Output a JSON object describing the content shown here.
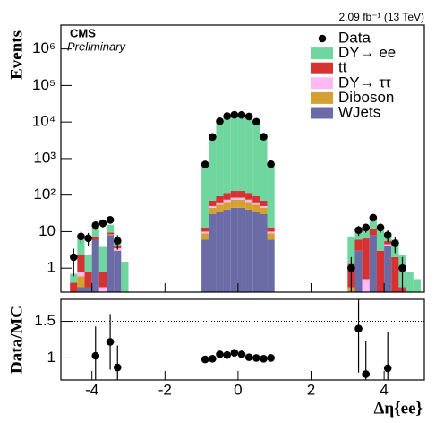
{
  "chart_data": [
    {
      "type": "histogram",
      "ylabel": "Events",
      "experiment": "CMS",
      "status": "Preliminary",
      "lumi": "2.09 fb⁻¹ (13 TeV)",
      "log_y": true,
      "legend": "upper right",
      "bins": [
        -4.6,
        -4.4,
        -4.2,
        -4.0,
        -3.8,
        -3.6,
        -3.4,
        -3.2,
        -3.0,
        -1.0,
        -0.8,
        -0.6,
        -0.4,
        -0.2,
        0,
        0.2,
        0.4,
        0.6,
        0.8,
        1.0,
        3.0,
        3.2,
        3.4,
        3.6,
        3.8,
        4.0,
        4.2,
        4.4,
        4.6,
        4.8,
        5.0
      ],
      "xlim": [
        -4.85,
        5.1
      ],
      "xticks": [
        -4,
        -2,
        0,
        2,
        4
      ],
      "ylim": [
        0.22,
        4500000
      ],
      "yticks": [
        1,
        10,
        {
          "value": 100,
          "label": "10²"
        },
        {
          "value": 1000,
          "label": "10³"
        },
        {
          "value": 10000,
          "label": "10⁴"
        },
        {
          "value": 100000,
          "label": "10⁵"
        },
        {
          "value": 1000000,
          "label": "10⁶"
        }
      ],
      "data": {
        "name": "Data",
        "color": "#000000",
        "values": [
          2,
          7.4,
          6.6,
          15,
          17,
          21,
          5.6,
          null,
          null,
          690,
          3900,
          10500,
          14500,
          15800,
          15700,
          14200,
          10200,
          3950,
          700,
          null,
          1,
          11,
          13,
          24,
          13,
          8,
          4.8,
          1,
          null,
          null
        ],
        "errors": [
          1.4,
          2.7,
          2.6,
          3.9,
          4.1,
          4.6,
          2.4,
          null,
          null,
          26,
          62,
          102,
          120,
          126,
          125,
          119,
          101,
          63,
          26,
          null,
          1,
          3.3,
          3.6,
          4.9,
          3.6,
          2.8,
          2.2,
          1,
          null,
          null
        ]
      },
      "series": [
        {
          "name": "DY→ ee",
          "color": "#6fd6a0",
          "values": [
            0.3,
            6,
            1.5,
            8,
            3,
            6,
            2,
            1.5,
            0,
            700,
            4000,
            10000,
            14000,
            15500,
            15500,
            14000,
            10000,
            4000,
            700,
            0,
            6,
            4,
            6,
            8,
            9,
            4,
            4,
            2,
            0.8,
            0.5
          ]
        },
        {
          "name": "tt",
          "color": "#d63232",
          "values": [
            0.2,
            1.5,
            0.5,
            1,
            0.5,
            1,
            0.5,
            0,
            0,
            3,
            20,
            30,
            40,
            45,
            45,
            40,
            30,
            20,
            3,
            0,
            1,
            3,
            6,
            4,
            3,
            1,
            2,
            0.3,
            0,
            0
          ]
        },
        {
          "name": "DY→ ττ",
          "color": "#ffb8f2",
          "values": [
            0.1,
            0.2,
            0,
            0,
            0.3,
            0,
            0.5,
            0,
            0,
            1,
            5,
            8,
            10,
            10,
            10,
            10,
            8,
            5,
            1,
            0,
            0,
            0,
            0.5,
            0,
            0,
            0.5,
            0,
            0,
            0,
            0
          ]
        },
        {
          "name": "Diboson",
          "color": "#d4a032",
          "values": [
            0.1,
            0.3,
            0,
            0,
            0,
            0.5,
            0,
            0,
            0,
            3,
            15,
            20,
            25,
            30,
            30,
            25,
            20,
            15,
            3,
            0,
            0.3,
            0,
            0,
            0,
            0,
            0,
            0,
            0,
            0,
            0
          ]
        },
        {
          "name": "WJets",
          "color": "#6b6ba6",
          "values": [
            0,
            0.3,
            0.3,
            6,
            0,
            8,
            3,
            0,
            0,
            6,
            30,
            35,
            40,
            45,
            45,
            40,
            35,
            30,
            6,
            0,
            0,
            3,
            0,
            8,
            0,
            4,
            0,
            0,
            0,
            0
          ]
        }
      ]
    },
    {
      "type": "scatter",
      "ylabel": "Data/MC",
      "xlabel": "Δη{ee}",
      "xlim": [
        -4.85,
        5.1
      ],
      "xticks": [
        -4,
        -2,
        0,
        2,
        4
      ],
      "ylim": [
        0.7,
        1.8
      ],
      "yticks": [
        1,
        1.5
      ],
      "grid": true,
      "color": "#000000",
      "x": [
        -3.9,
        -3.5,
        -3.3,
        -0.9,
        -0.7,
        -0.5,
        -0.3,
        -0.1,
        0.1,
        0.3,
        0.5,
        0.7,
        0.9,
        3.3,
        3.5,
        4.1
      ],
      "values": [
        1.03,
        1.22,
        0.87,
        0.98,
        0.99,
        1.05,
        1.04,
        1.07,
        1.05,
        1.01,
        1.0,
        0.99,
        1.0,
        1.4,
        0.78,
        0.86
      ],
      "errors": [
        0.4,
        0.38,
        0.3,
        0.04,
        0.02,
        0.015,
        0.012,
        0.012,
        0.012,
        0.012,
        0.015,
        0.02,
        0.04,
        0.6,
        0.45,
        0.5
      ]
    }
  ]
}
